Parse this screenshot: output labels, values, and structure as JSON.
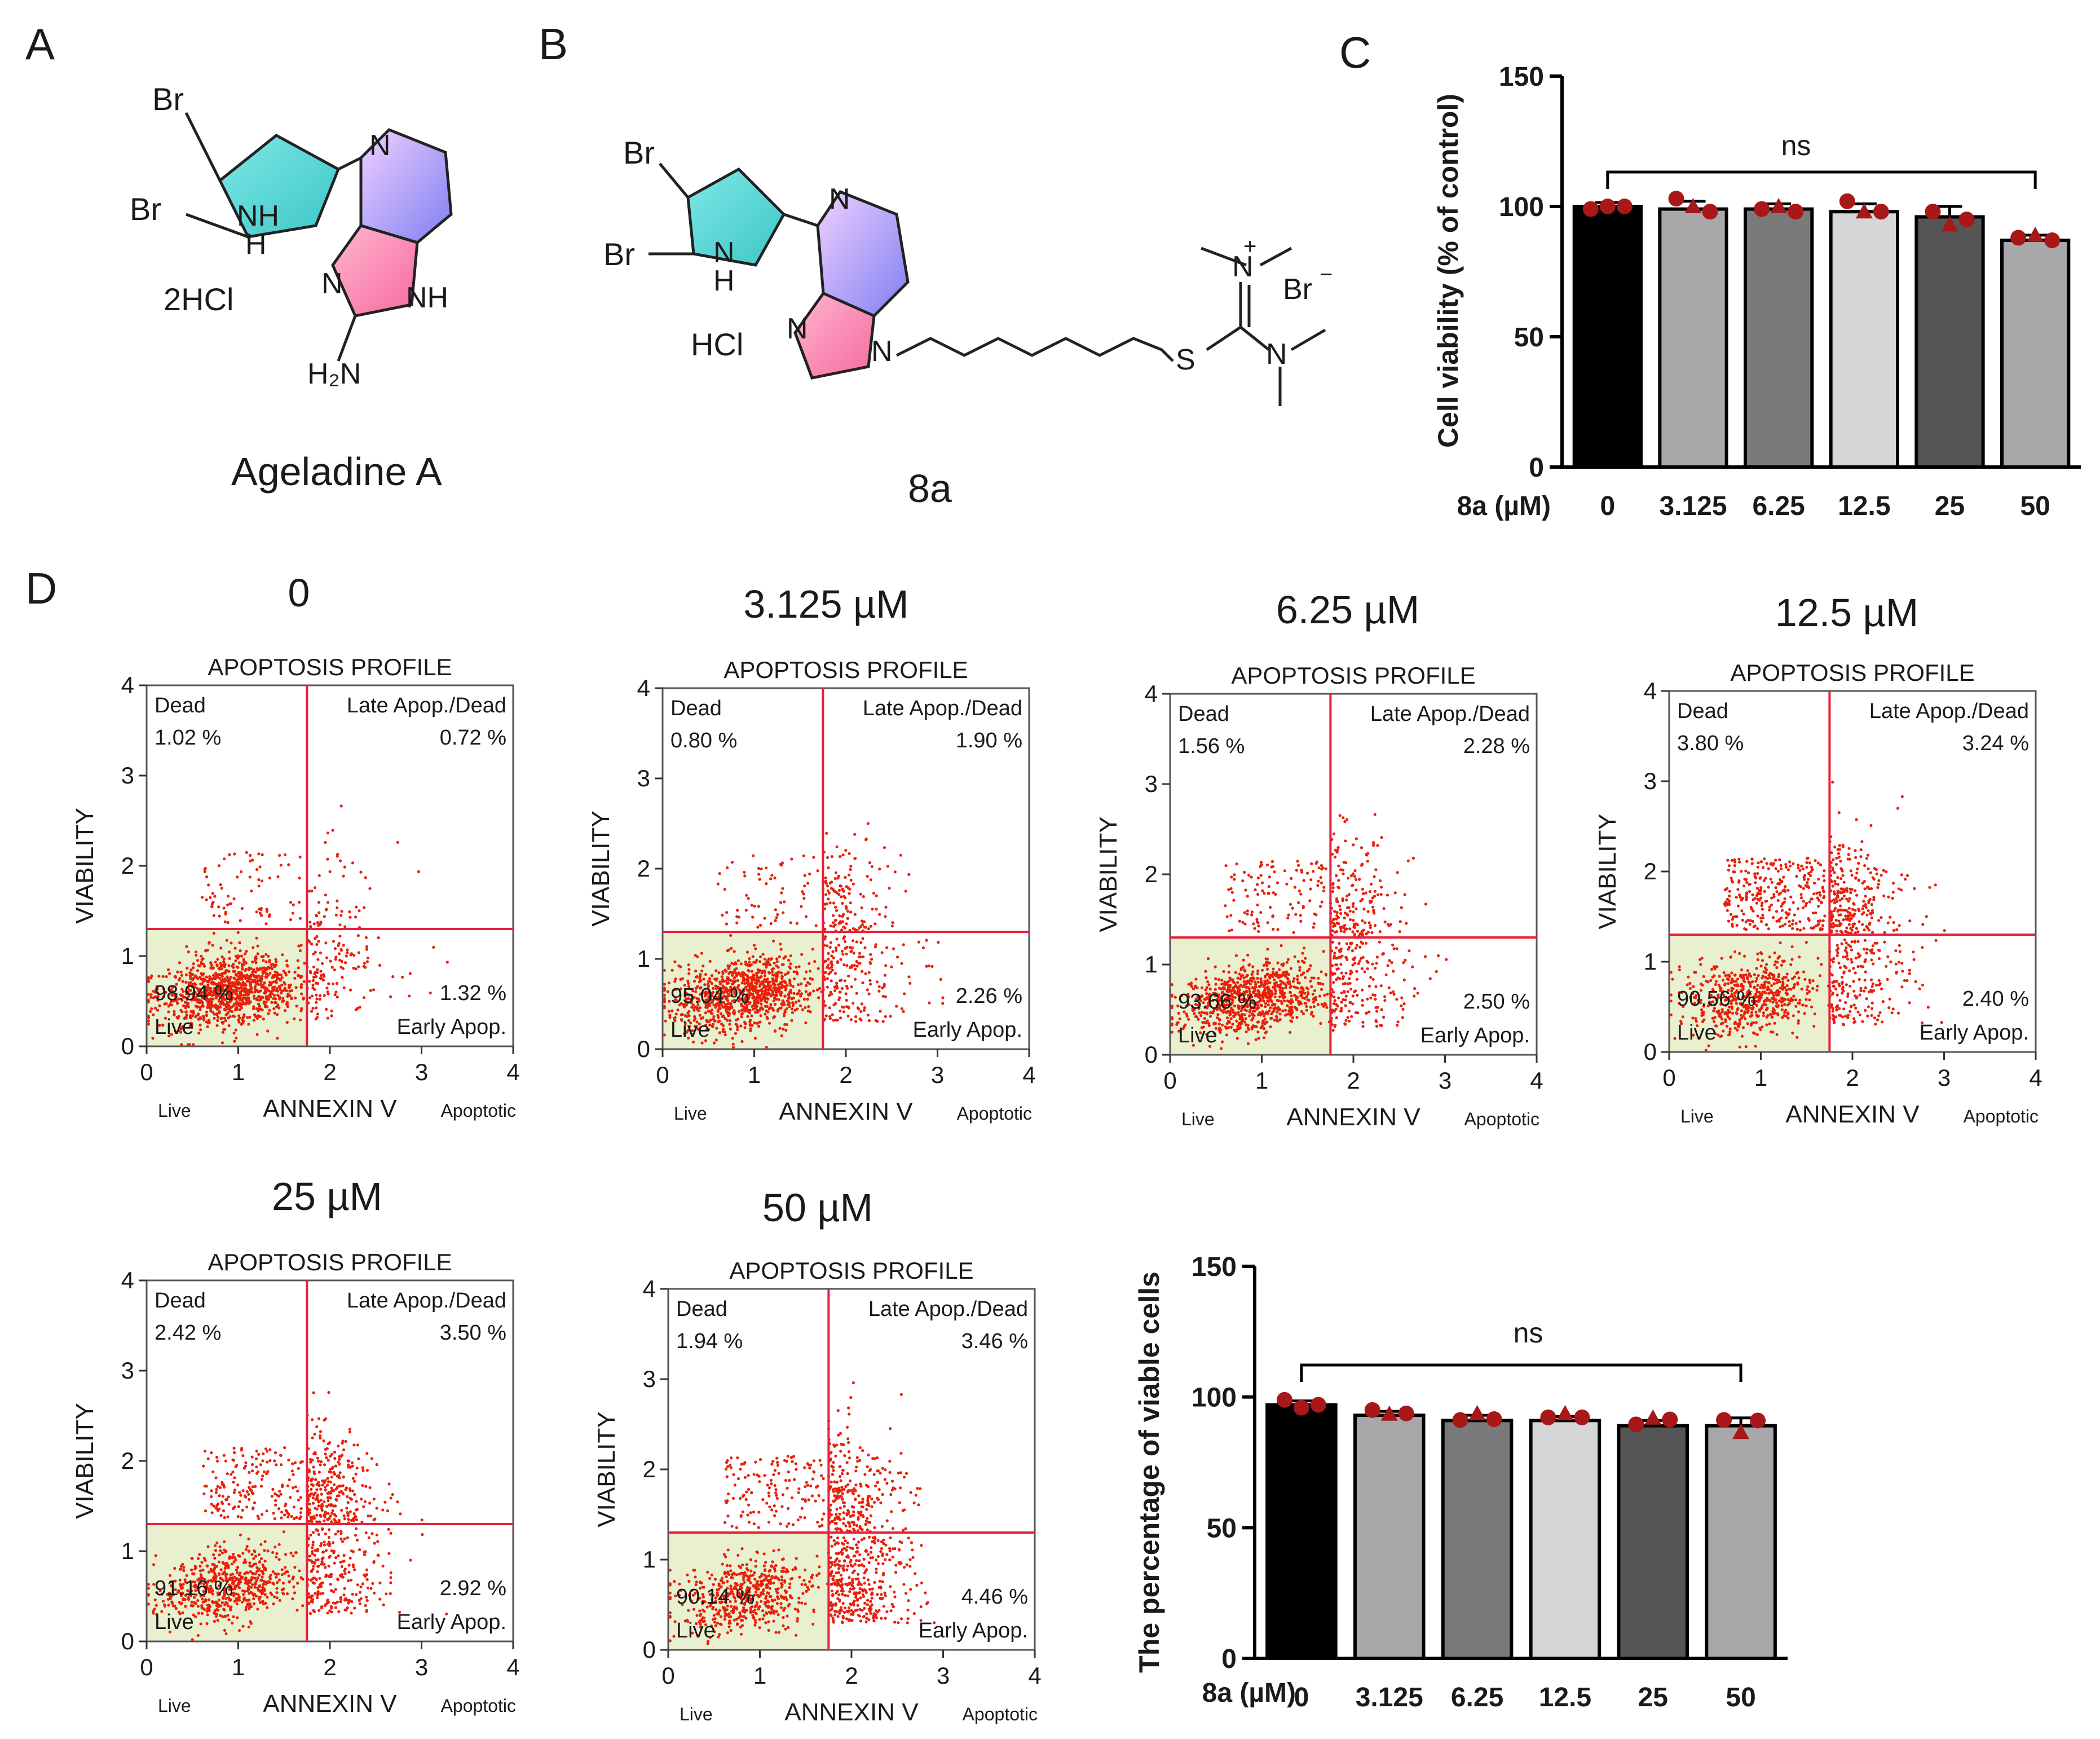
{
  "panel_labels": {
    "a": "A",
    "b": "B",
    "c": "C",
    "d": "D"
  },
  "molecule_a": {
    "br1": "Br",
    "br2": "Br",
    "nh_pyrrole": "NH",
    "h_pyrrole": "H",
    "n_pyridine": "N",
    "n_imid": "N",
    "nh_imid": "NH",
    "nh2": "H₂N",
    "salt": "2HCl",
    "name": "Ageladine A"
  },
  "molecule_b": {
    "br1": "Br",
    "br2": "Br",
    "nh_pyrrole": "N",
    "h_pyrrole": "H",
    "n_pyridine": "N",
    "n_imid1": "N",
    "n_imid2": "N",
    "s": "S",
    "n_plus": "N",
    "plus": "+",
    "n_dm": "N",
    "br_counter": "Br",
    "minus": "−",
    "salt": "HCl",
    "name": "8a"
  },
  "chart_data": [
    {
      "type": "bar",
      "panel": "C",
      "title": "",
      "xlabel": "8a (µM)",
      "ylabel": "Cell  viability (% of control)",
      "categories": [
        "0",
        "3.125",
        "6.25",
        "12.5",
        "25",
        "50"
      ],
      "values": [
        100,
        99,
        99,
        98,
        96,
        87
      ],
      "errors": [
        1.5,
        3,
        2,
        3,
        4,
        2
      ],
      "points": [
        [
          99,
          100,
          100
        ],
        [
          103,
          100,
          98
        ],
        [
          99,
          100,
          98
        ],
        [
          102,
          98,
          98
        ],
        [
          98,
          93,
          95
        ],
        [
          88,
          89,
          87
        ]
      ],
      "bar_colors": [
        "#000000",
        "#a8a8aa",
        "#7a7a7a",
        "#d6d6d6",
        "#555555",
        "#a8a8aa"
      ],
      "ylim": [
        0,
        150
      ],
      "yticks": [
        0,
        50,
        100,
        150
      ],
      "annotation": "ns"
    },
    {
      "type": "bar",
      "panel": "D-bottom-right",
      "title": "",
      "xlabel": "8a (µM)",
      "ylabel": "The percentage of viable cells",
      "categories": [
        "0",
        "3.125",
        "6.25",
        "12.5",
        "25",
        "50"
      ],
      "values": [
        97,
        93,
        91,
        91,
        89,
        89
      ],
      "errors": [
        1.5,
        1.5,
        2,
        1.5,
        2,
        3
      ],
      "points": [
        [
          98.9,
          95.9,
          97.0
        ],
        [
          95.0,
          93.5,
          93.7
        ],
        [
          91.2,
          93.7,
          91.5
        ],
        [
          92.2,
          93.7,
          92.2
        ],
        [
          89.5,
          92.0,
          91.4
        ],
        [
          91.2,
          86.5,
          91.0
        ]
      ],
      "bar_colors": [
        "#000000",
        "#a8a8aa",
        "#7a7a7a",
        "#d6d6d6",
        "#555555",
        "#a8a8aa"
      ],
      "ylim": [
        0,
        150
      ],
      "yticks": [
        0,
        50,
        100,
        150
      ],
      "annotation": "ns"
    },
    {
      "type": "scatter",
      "panel": "D",
      "plots": [
        {
          "heading": "0",
          "live": "98.94 %",
          "dead": "1.02 %",
          "late": "0.72 %",
          "early": "1.32 %"
        },
        {
          "heading": "3.125 µM",
          "live": "95.04 %",
          "dead": "0.80 %",
          "late": "1.90 %",
          "early": "2.26 %"
        },
        {
          "heading": "6.25 µM",
          "live": "93.66 %",
          "dead": "1.56 %",
          "late": "2.28 %",
          "early": "2.50 %"
        },
        {
          "heading": "12.5 µM",
          "live": "90.56 %",
          "dead": "3.80 %",
          "late": "3.24 %",
          "early": "2.40 %"
        },
        {
          "heading": "25 µM",
          "live": "91.16 %",
          "dead": "2.42 %",
          "late": "3.50 %",
          "early": "2.92 %"
        },
        {
          "heading": "50 µM",
          "live": "90.14 %",
          "dead": "1.94 %",
          "late": "3.46 %",
          "early": "4.46 %"
        }
      ],
      "plot_title": "APOPTOSIS PROFILE",
      "xlabel": "ANNEXIN V",
      "ylabel": "VIABILITY",
      "x_left_label": "Live",
      "x_right_label": "Apoptotic",
      "quadrant_labels": {
        "dead": "Dead",
        "late": "Late Apop./Dead",
        "early": "Early Apop.",
        "live": "Live"
      },
      "xlim": [
        0,
        4
      ],
      "ylim": [
        0,
        4
      ],
      "xticks": [
        0,
        1,
        2,
        3,
        4
      ],
      "yticks": [
        0,
        1,
        2,
        3,
        4
      ],
      "gate_x": 1.75,
      "gate_y": 1.3,
      "colors": {
        "dots": "#e8200c",
        "gate": "#e8203a",
        "live_fill": "#e9f0cf"
      }
    }
  ]
}
